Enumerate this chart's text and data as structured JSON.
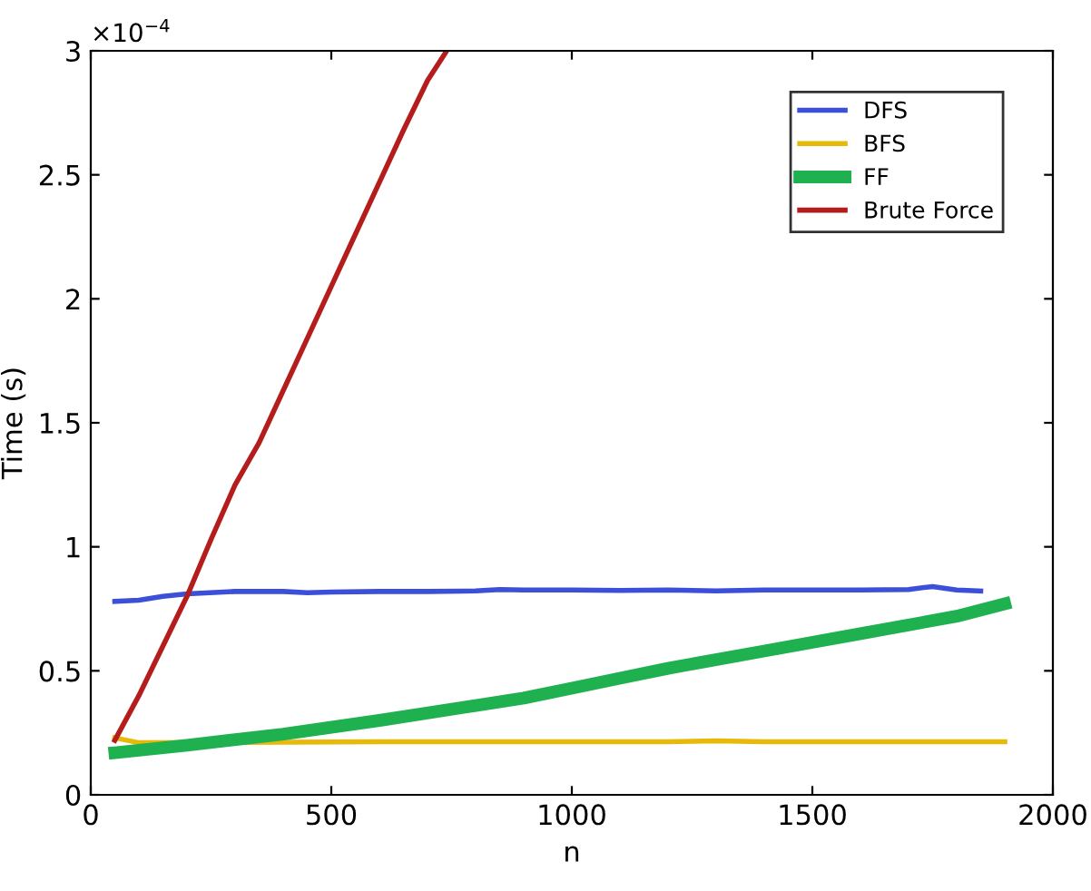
{
  "chart_data": {
    "type": "line",
    "xlabel": "n",
    "ylabel": "Time (s)",
    "annotations": [
      "×10$^{−4}$"
    ],
    "xlim": [
      0,
      2000
    ],
    "ylim": [
      0,
      3
    ],
    "xticks": [
      0,
      500,
      1000,
      1500,
      2000
    ],
    "yticks": [
      0,
      0.5,
      1,
      1.5,
      2,
      2.5,
      3
    ],
    "legend": "top right",
    "grid": false,
    "marker": "none",
    "line_style": "solid",
    "series": [
      {
        "name": "DFS",
        "color": "#3b4fd8",
        "x": [
          50,
          100,
          150,
          200,
          300,
          400,
          450,
          500,
          600,
          700,
          800,
          850,
          900,
          1000,
          1100,
          1200,
          1300,
          1400,
          1500,
          1600,
          1700,
          1750,
          1800,
          1850
        ],
        "values": [
          0.78,
          0.785,
          0.8,
          0.81,
          0.82,
          0.82,
          0.815,
          0.818,
          0.82,
          0.82,
          0.822,
          0.828,
          0.826,
          0.826,
          0.824,
          0.826,
          0.822,
          0.826,
          0.826,
          0.826,
          0.828,
          0.84,
          0.826,
          0.822
        ]
      },
      {
        "name": "BFS",
        "color": "#e6b90a",
        "x": [
          50,
          100,
          400,
          600,
          800,
          1000,
          1200,
          1300,
          1400,
          1600,
          1800,
          1900
        ],
        "values": [
          0.23,
          0.21,
          0.212,
          0.214,
          0.214,
          0.214,
          0.214,
          0.218,
          0.214,
          0.214,
          0.214,
          0.214
        ]
      },
      {
        "name": "FF",
        "color": "#1fb14f",
        "x": [
          50,
          200,
          400,
          600,
          800,
          900,
          1000,
          1100,
          1200,
          1400,
          1600,
          1800,
          1900
        ],
        "values": [
          0.17,
          0.2,
          0.245,
          0.3,
          0.36,
          0.39,
          0.43,
          0.47,
          0.51,
          0.58,
          0.65,
          0.72,
          0.77
        ]
      },
      {
        "name": "Brute Force",
        "color": "#b51d1d",
        "x": [
          50,
          100,
          150,
          200,
          250,
          300,
          350,
          400,
          450,
          500,
          550,
          600,
          650,
          700,
          740
        ],
        "values": [
          0.22,
          0.4,
          0.6,
          0.8,
          1.03,
          1.25,
          1.42,
          1.63,
          1.84,
          2.05,
          2.26,
          2.47,
          2.68,
          2.88,
          3.0
        ]
      }
    ]
  }
}
